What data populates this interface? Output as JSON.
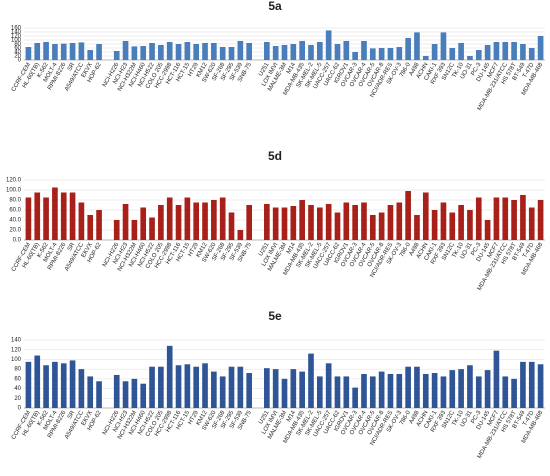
{
  "chart_data": [
    {
      "type": "bar",
      "title": "5a",
      "color": "#4a7ebb",
      "categories": [
        "CCRF-CEM",
        "HL-60(TB)",
        "K-562",
        "MOLT-4",
        "RPMI-8226",
        "SR",
        "A549/ATCC",
        "EKVX",
        "HOP-62",
        null,
        "NCI-H226",
        "NCI-H23",
        "NCI-H322M",
        "NCI-H460",
        "NCI-H522",
        "COLO 205",
        "HCC-2998",
        "HCT-116",
        "HCT-15",
        "HT29",
        "KM12",
        "SW-620",
        "SF-268",
        "SF-295",
        "SF-539",
        "SNB-75",
        null,
        "U251",
        "LOX IMVI",
        "MALME-3M",
        "M14",
        "MDA-MB-435",
        "SK-MEL-2",
        "SK-MEL-5",
        "UACC-257",
        "UACC-62",
        "IGROV1",
        "OVCAR-3",
        "OVCAR-4",
        "OVCAR-5",
        "OVCAR-8",
        "NCI/ADR-RES",
        "SK-OV-3",
        "786-0",
        "A498",
        "ACHN",
        "CAKI-1",
        "RXF 393",
        "SN12C",
        "TK-10",
        "UO-31",
        "PC-3",
        "DU-145",
        "MCF7",
        "MDA-MB-231/ATCC",
        "HS 578T",
        "BT-549",
        "T-47D",
        "MDA-MB-468"
      ],
      "values": [
        65,
        85,
        90,
        80,
        82,
        85,
        88,
        50,
        80,
        null,
        45,
        95,
        68,
        70,
        85,
        75,
        90,
        80,
        90,
        80,
        85,
        85,
        65,
        65,
        95,
        85,
        null,
        90,
        70,
        75,
        80,
        95,
        75,
        90,
        148,
        80,
        95,
        40,
        95,
        58,
        60,
        60,
        65,
        110,
        138,
        20,
        80,
        138,
        60,
        85,
        20,
        50,
        75,
        90,
        90,
        90,
        80,
        60,
        120
      ],
      "ylim": [
        0,
        160
      ],
      "yticks": [
        0,
        20,
        40,
        60,
        80,
        100,
        120,
        140,
        160
      ]
    },
    {
      "type": "bar",
      "title": "5d",
      "color": "#a8201a",
      "categories": [
        "CCRF-CEM",
        "HL-60(TB)",
        "K-562",
        "MOLT-4",
        "RPMI-8226",
        "SR",
        "A549/ATCC",
        "EKVX",
        "HOP-62",
        null,
        "NCI-H226",
        "NCI-H23",
        "NCI-H322M",
        "NCI-H460",
        "NCI-H522",
        "COLO 205",
        "HCC-2998",
        "HCT-116",
        "HCT-15",
        "HT29",
        "KM12",
        "SW-620",
        "SF-268",
        "SF-295",
        "SF-539",
        "SNB-75",
        null,
        "U251",
        "LOX IMVI",
        "MALME-3M",
        "M14",
        "MDA-MB-435",
        "SK-MEL-2",
        "SK-MEL-5",
        "UACC-257",
        "UACC-62",
        "IGROV1",
        "OVCAR-3",
        "OVCAR-4",
        "OVCAR-5",
        "OVCAR-8",
        "NCI/ADR-RES",
        "SK-OV-3",
        "786-0",
        "A498",
        "ACHN",
        "CAKI-1",
        "RXF 393",
        "SN12C",
        "TK-10",
        "UO-31",
        "PC-3",
        "DU-145",
        "MCF7",
        "MDA-MB-231/ATCC",
        "HS 578T",
        "BT-549",
        "T-47D",
        "MDA-MB-468"
      ],
      "values": [
        85,
        95,
        85,
        105,
        95,
        95,
        75,
        50,
        60,
        null,
        40,
        72,
        40,
        65,
        45,
        70,
        85,
        70,
        85,
        75,
        75,
        80,
        85,
        55,
        20,
        70,
        null,
        72,
        65,
        65,
        68,
        80,
        70,
        65,
        72,
        55,
        75,
        70,
        75,
        50,
        55,
        70,
        75,
        98,
        50,
        95,
        60,
        75,
        55,
        70,
        60,
        85,
        40,
        85,
        85,
        80,
        90,
        65,
        80
      ],
      "ylim": [
        0,
        120
      ],
      "yticks": [
        {
          "value": 0,
          "label": "0.0"
        },
        {
          "value": 20,
          "label": "20.0"
        },
        {
          "value": 40,
          "label": "40.0"
        },
        {
          "value": 60,
          "label": "60.0"
        },
        {
          "value": 80,
          "label": "80.0"
        },
        {
          "value": 100,
          "label": "100.0"
        },
        {
          "value": 120,
          "label": "120.0"
        }
      ]
    },
    {
      "type": "bar",
      "title": "5e",
      "color": "#2f5597",
      "categories": [
        "CCRF-CEM",
        "HL-60(TB)",
        "K-562",
        "MOLT-4",
        "RPMI-8226",
        "SR",
        "A549/ATCC",
        "EKVX",
        "HOP-62",
        null,
        "NCI-H226",
        "NCI-H23",
        "NCI-H322M",
        "NCI-H460",
        "NCI-H522",
        "COLO 205",
        "HCC-2998",
        "HCT-116",
        "HCT-15",
        "HT29",
        "KM12",
        "SW-620",
        "SF-268",
        "SF-295",
        "SF-539",
        "SNB-75",
        null,
        "U251",
        "LOX IMVI",
        "MALME-3M",
        "M14",
        "MDA-MB-435",
        "SK-MEL-2",
        "SK-MEL-5",
        "UACC-257",
        "UACC-62",
        "IGROV1",
        "OVCAR-3",
        "OVCAR-4",
        "OVCAR-5",
        "OVCAR-8",
        "NCI/ADR-RES",
        "SK-OV-3",
        "786-0",
        "A498",
        "ACHN",
        "CAKI-1",
        "RXF 393",
        "SN12C",
        "TK-10",
        "UO-31",
        "PC-3",
        "DU-145",
        "MCF7",
        "MDA-MB-231/ATCC",
        "HS 578T",
        "BT-549",
        "T-47D",
        "MDA-MB-468"
      ],
      "values": [
        95,
        108,
        88,
        95,
        92,
        98,
        80,
        65,
        55,
        null,
        68,
        55,
        60,
        50,
        85,
        85,
        128,
        88,
        90,
        85,
        92,
        75,
        65,
        85,
        85,
        72,
        null,
        82,
        80,
        60,
        80,
        75,
        112,
        65,
        92,
        65,
        65,
        42,
        70,
        65,
        75,
        70,
        70,
        85,
        85,
        70,
        72,
        65,
        78,
        80,
        88,
        65,
        78,
        118,
        65,
        60,
        95,
        95,
        90
      ],
      "ylim": [
        0,
        140
      ],
      "yticks": [
        0,
        20,
        40,
        60,
        80,
        100,
        120,
        140
      ]
    }
  ]
}
